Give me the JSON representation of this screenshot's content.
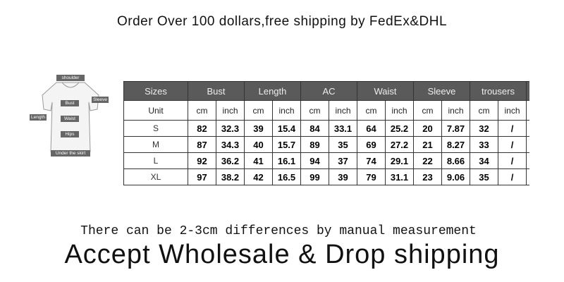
{
  "banner": "Order Over 100 dollars,free shipping by FedEx&DHL",
  "diagram": {
    "labels": [
      "shoulder",
      "Bust",
      "Sleeve",
      "Length",
      "Waist",
      "Hips",
      "Under the skirt"
    ]
  },
  "table": {
    "headers": [
      "Sizes",
      "Bust",
      "Length",
      "AC",
      "Waist",
      "Sleeve",
      "trousers"
    ],
    "unit_label": "Unit",
    "units": [
      "cm",
      "inch",
      "cm",
      "inch",
      "cm",
      "inch",
      "cm",
      "inch",
      "cm",
      "inch",
      "cm",
      "inch"
    ],
    "rows": [
      {
        "size": "S",
        "values": [
          "82",
          "32.3",
          "39",
          "15.4",
          "84",
          "33.1",
          "64",
          "25.2",
          "20",
          "7.87",
          "32",
          "/"
        ]
      },
      {
        "size": "M",
        "values": [
          "87",
          "34.3",
          "40",
          "15.7",
          "89",
          "35",
          "69",
          "27.2",
          "21",
          "8.27",
          "33",
          "/"
        ]
      },
      {
        "size": "L",
        "values": [
          "92",
          "36.2",
          "41",
          "16.1",
          "94",
          "37",
          "74",
          "29.1",
          "22",
          "8.66",
          "34",
          "/"
        ]
      },
      {
        "size": "XL",
        "values": [
          "97",
          "38.2",
          "42",
          "16.5",
          "99",
          "39",
          "79",
          "31.1",
          "23",
          "9.06",
          "35",
          "/"
        ]
      }
    ]
  },
  "note": "There can be 2-3cm differences by manual measurement",
  "tagline": "Accept Wholesale & Drop shipping"
}
